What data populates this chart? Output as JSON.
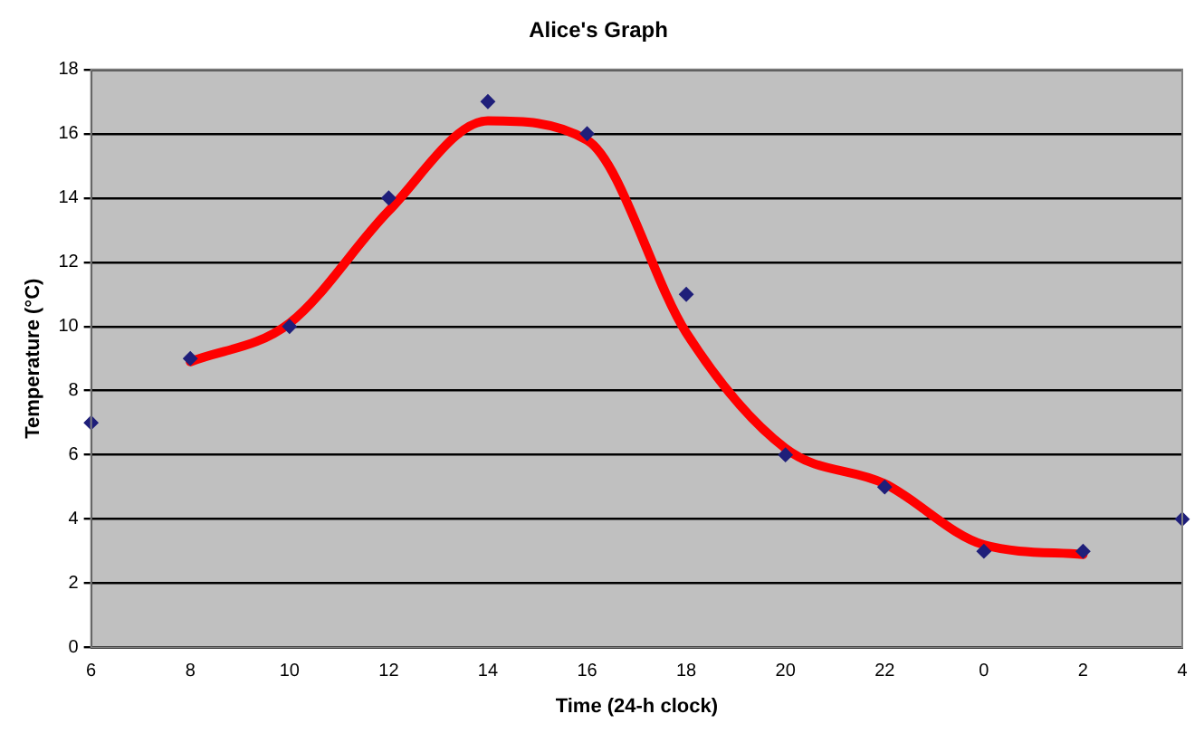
{
  "chart_data": {
    "type": "scatter",
    "title": "Alice's Graph",
    "xlabel": "Time (24-h clock)",
    "ylabel": "Temperature (°C)",
    "categories": [
      "6",
      "8",
      "10",
      "12",
      "14",
      "16",
      "18",
      "20",
      "22",
      "0",
      "2",
      "4"
    ],
    "ylim": [
      0,
      18
    ],
    "yticks": [
      0,
      2,
      4,
      6,
      8,
      10,
      12,
      14,
      16,
      18
    ],
    "grid": "y",
    "legend": false,
    "series": [
      {
        "color": "#1f1f7a",
        "marker": "diamond",
        "values": [
          7,
          9,
          10,
          14,
          17,
          16,
          11,
          6,
          5,
          3,
          3,
          4
        ]
      },
      {
        "type": "line",
        "color": "#ff0000",
        "marker": "none",
        "values": [
          null,
          8.9,
          10.1,
          13.6,
          16.4,
          15.8,
          9.8,
          6.2,
          5.1,
          3.2,
          2.9,
          null
        ]
      }
    ]
  }
}
